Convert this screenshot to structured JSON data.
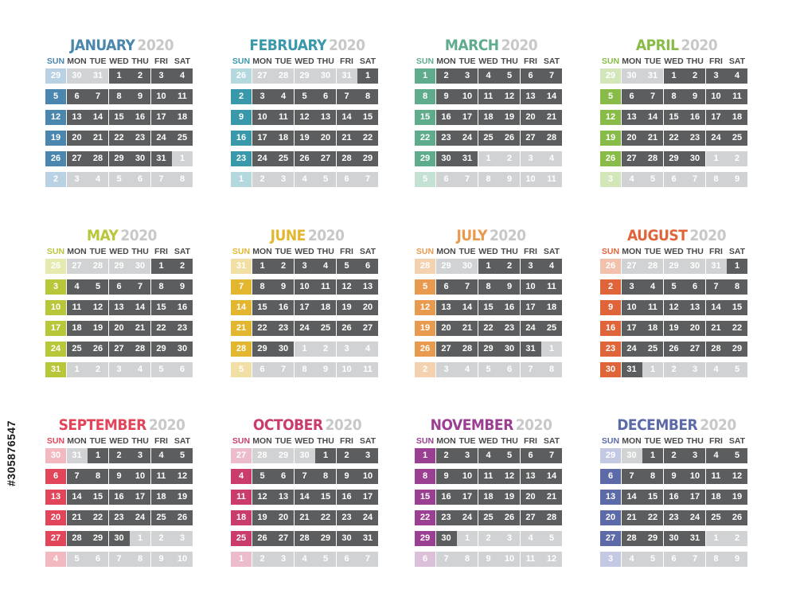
{
  "year": "2020",
  "day_headers": [
    "SUN",
    "MON",
    "TUE",
    "WED",
    "THU",
    "FRI",
    "SAT"
  ],
  "stock_id": "#305876547",
  "colors": {
    "current_day_bg": "#5c5d5e",
    "other_day_bg": "#d1d2d3",
    "year_text": "#c8c8c8",
    "day_header_text": "#4a4a4a"
  },
  "months": [
    {
      "name": "JANUARY",
      "accent": "#4a86ae",
      "light": "#b8d2e3",
      "first_dow": 3,
      "days": 31,
      "prev_days": 31
    },
    {
      "name": "FEBRUARY",
      "accent": "#3a98ab",
      "light": "#b3d9df",
      "first_dow": 6,
      "days": 29,
      "prev_days": 31
    },
    {
      "name": "MARCH",
      "accent": "#5fac8c",
      "light": "#c3e2d3",
      "first_dow": 0,
      "days": 31,
      "prev_days": 29
    },
    {
      "name": "APRIL",
      "accent": "#88bb47",
      "light": "#d3e6ba",
      "first_dow": 3,
      "days": 30,
      "prev_days": 31
    },
    {
      "name": "MAY",
      "accent": "#b8c63a",
      "light": "#e5ebae",
      "first_dow": 5,
      "days": 31,
      "prev_days": 30
    },
    {
      "name": "JUNE",
      "accent": "#e3b62f",
      "light": "#f2dfa6",
      "first_dow": 1,
      "days": 30,
      "prev_days": 31
    },
    {
      "name": "JULY",
      "accent": "#e89a4e",
      "light": "#f4d2b0",
      "first_dow": 3,
      "days": 31,
      "prev_days": 30
    },
    {
      "name": "AUGUST",
      "accent": "#e0643a",
      "light": "#f2c1ad",
      "first_dow": 6,
      "days": 31,
      "prev_days": 31
    },
    {
      "name": "SEPTEMBER",
      "accent": "#e2455a",
      "light": "#f2b9c0",
      "first_dow": 2,
      "days": 30,
      "prev_days": 31
    },
    {
      "name": "OCTOBER",
      "accent": "#c93c6c",
      "light": "#ecbccd",
      "first_dow": 4,
      "days": 31,
      "prev_days": 30
    },
    {
      "name": "NOVEMBER",
      "accent": "#9b3f93",
      "light": "#dcc0da",
      "first_dow": 0,
      "days": 30,
      "prev_days": 31
    },
    {
      "name": "DECEMBER",
      "accent": "#5c6aa8",
      "light": "#c4c9e3",
      "first_dow": 2,
      "days": 31,
      "prev_days": 30
    }
  ]
}
